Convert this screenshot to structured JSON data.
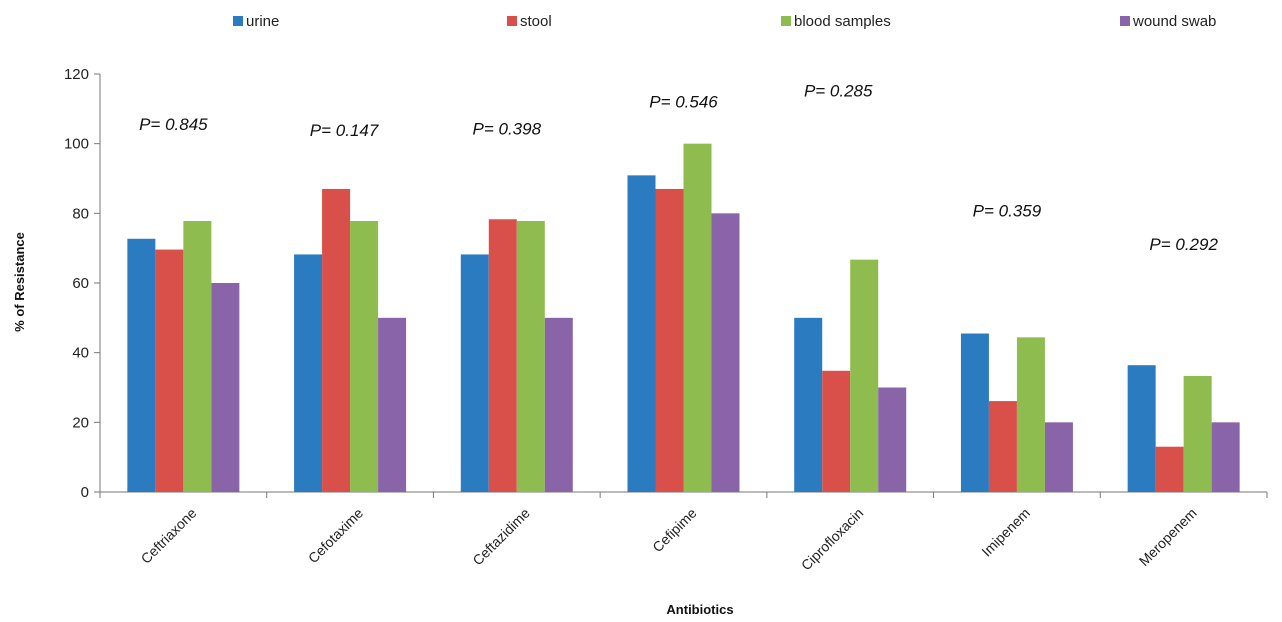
{
  "chart_data": {
    "type": "bar",
    "categories": [
      "Ceftriaxone",
      "Cefotaxime",
      "Ceftazidime",
      "Cefipime",
      "Ciprofloxacin",
      "Imipenem",
      "Meropenem"
    ],
    "series": [
      {
        "name": "urine",
        "color": "#2b7bc0",
        "values": [
          72.7,
          68.2,
          68.2,
          90.9,
          50.0,
          45.5,
          36.4
        ]
      },
      {
        "name": "stool",
        "color": "#d9504a",
        "values": [
          69.6,
          87.0,
          78.3,
          87.0,
          34.8,
          26.1,
          13.0
        ]
      },
      {
        "name": "blood samples",
        "color": "#8ebc4e",
        "values": [
          77.8,
          77.8,
          77.8,
          100.0,
          66.7,
          44.4,
          33.3
        ]
      },
      {
        "name": "wound swab",
        "color": "#8a64a8",
        "values": [
          60.0,
          50.0,
          50.0,
          80.0,
          30.0,
          20.0,
          20.0
        ]
      }
    ],
    "annotations": [
      "P= 0.845",
      "P= 0.147",
      "P= 0.398",
      "P= 0.546",
      "P= 0.285",
      "P= 0.359",
      "P= 0.292"
    ],
    "xlabel": "Antibiotics",
    "ylabel": "% of Resistance",
    "ylim": [
      0,
      120
    ],
    "yticks": [
      0,
      20,
      40,
      60,
      80,
      100,
      120
    ],
    "grid": false,
    "legend_position": "top"
  }
}
